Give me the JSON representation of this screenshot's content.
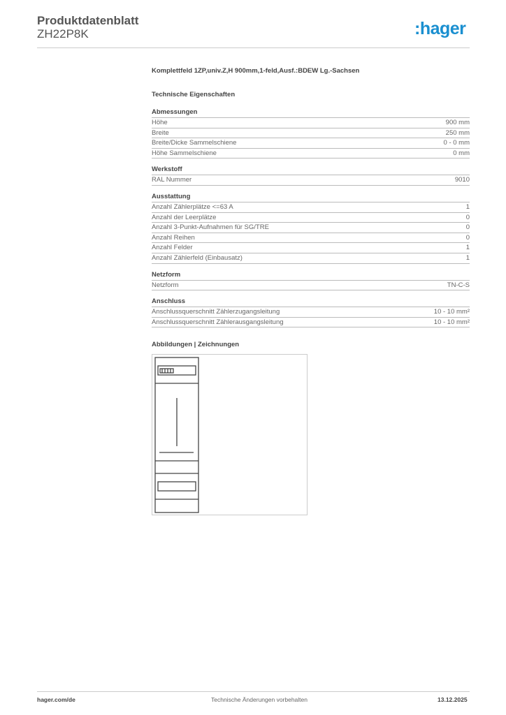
{
  "header": {
    "title": "Produktdatenblatt",
    "code": "ZH22P8K",
    "logo": ":hager",
    "logo_color": "#1a8fd0"
  },
  "description": "Komplettfeld 1ZP,univ.Z,H 900mm,1-feld,Ausf.:BDEW Lg.-Sachsen",
  "tech_title": "Technische Eigenschaften",
  "sections": [
    {
      "title": "Abmessungen",
      "rows": [
        [
          "Höhe",
          "900 mm"
        ],
        [
          "Breite",
          "250 mm"
        ],
        [
          "Breite/Dicke Sammelschiene",
          "0 - 0 mm"
        ],
        [
          "Höhe Sammelschiene",
          "0 mm"
        ]
      ]
    },
    {
      "title": "Werkstoff",
      "rows": [
        [
          "RAL Nummer",
          "9010"
        ]
      ]
    },
    {
      "title": "Ausstattung",
      "rows": [
        [
          "Anzahl Zählerplätze <=63 A",
          "1"
        ],
        [
          "Anzahl der Leerplätze",
          "0"
        ],
        [
          "Anzahl 3-Punkt-Aufnahmen für SG/TRE",
          "0"
        ],
        [
          "Anzahl Reihen",
          "0"
        ],
        [
          "Anzahl Felder",
          "1"
        ],
        [
          "Anzahl Zählerfeld (Einbausatz)",
          "1"
        ]
      ]
    },
    {
      "title": "Netzform",
      "rows": [
        [
          "Netzform",
          "TN-C-S"
        ]
      ]
    },
    {
      "title": "Anschluss",
      "rows": [
        [
          "Anschlussquerschnitt Zählerzugangsleitung",
          "10 - 10 mm²"
        ],
        [
          "Anschlussquerschnitt Zählerausgangsleitung",
          "10 - 10 mm²"
        ]
      ]
    }
  ],
  "figures_title": "Abbildungen | Zeichnungen",
  "footer": {
    "left": "hager.com/de",
    "center": "Technische Änderungen vorbehalten",
    "right": "13.12.2025"
  }
}
